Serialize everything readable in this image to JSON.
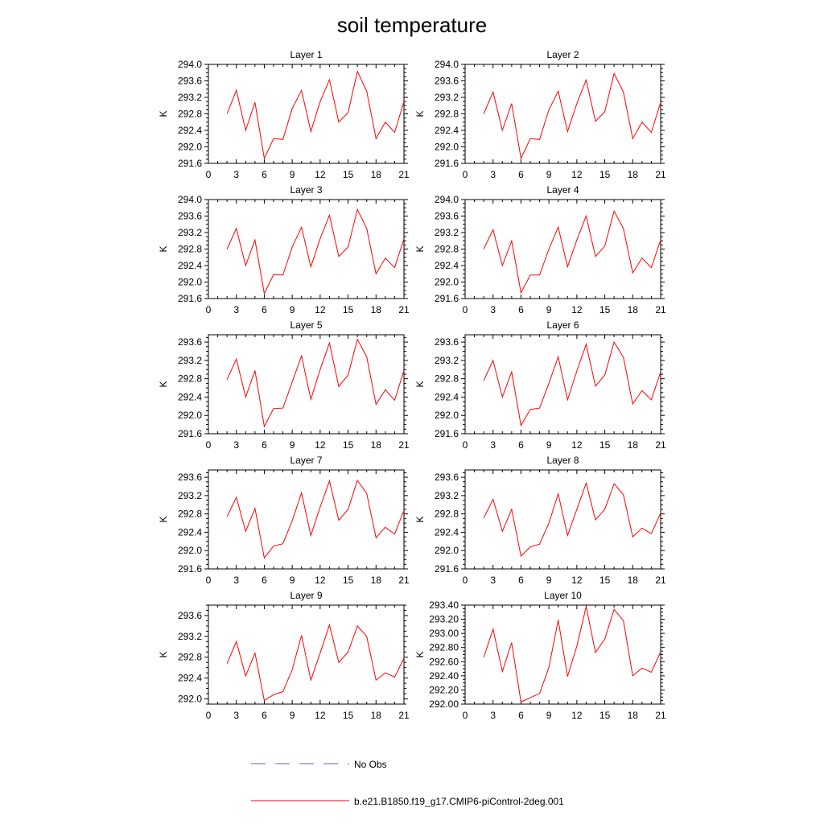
{
  "title": "soil temperature",
  "legend": {
    "placement": "bottom",
    "items": [
      {
        "label": "No Obs",
        "color": "#5a64c8",
        "style": "dashed"
      },
      {
        "label": "b.e21.B1850.f19_g17.CMIP6-piControl-2deg.001",
        "color": "#ff0000",
        "style": "solid"
      }
    ]
  },
  "chart_data": [
    {
      "type": "line",
      "title": "Layer 1",
      "ylabel": "K",
      "xlim": [
        0,
        21
      ],
      "ylim": [
        291.6,
        294.0
      ],
      "xticks": [
        0,
        3,
        6,
        9,
        12,
        15,
        18,
        21
      ],
      "yticks": [
        "291.6",
        "292.0",
        "292.4",
        "292.8",
        "293.2",
        "293.6",
        "294.0"
      ],
      "grid": false,
      "series": [
        {
          "color": "#ff0000",
          "x": [
            2,
            3,
            4,
            5,
            6,
            7,
            8,
            9,
            10,
            11,
            12,
            13,
            14,
            15,
            16,
            17,
            18,
            19,
            20,
            21
          ],
          "y": [
            292.8,
            293.37,
            292.4,
            293.08,
            291.72,
            292.2,
            292.18,
            292.93,
            293.37,
            292.37,
            293.1,
            293.63,
            292.6,
            292.83,
            293.83,
            293.35,
            292.2,
            292.6,
            292.35,
            293.1
          ]
        }
      ]
    },
    {
      "type": "line",
      "title": "Layer 2",
      "ylabel": "K",
      "xlim": [
        0,
        21
      ],
      "ylim": [
        291.6,
        294.0
      ],
      "xticks": [
        0,
        3,
        6,
        9,
        12,
        15,
        18,
        21
      ],
      "yticks": [
        "291.6",
        "292.0",
        "292.4",
        "292.8",
        "293.2",
        "293.6",
        "294.0"
      ],
      "grid": false,
      "series": [
        {
          "color": "#ff0000",
          "x": [
            2,
            3,
            4,
            5,
            6,
            7,
            8,
            9,
            10,
            11,
            12,
            13,
            14,
            15,
            16,
            17,
            18,
            19,
            20,
            21
          ],
          "y": [
            292.8,
            293.33,
            292.4,
            293.05,
            291.72,
            292.2,
            292.18,
            292.9,
            293.35,
            292.37,
            293.05,
            293.62,
            292.62,
            292.85,
            293.78,
            293.33,
            292.2,
            292.6,
            292.35,
            293.08
          ]
        }
      ]
    },
    {
      "type": "line",
      "title": "Layer 3",
      "ylabel": "K",
      "xlim": [
        0,
        21
      ],
      "ylim": [
        291.6,
        294.0
      ],
      "xticks": [
        0,
        3,
        6,
        9,
        12,
        15,
        18,
        21
      ],
      "yticks": [
        "291.6",
        "292.0",
        "292.4",
        "292.8",
        "293.2",
        "293.6",
        "294.0"
      ],
      "grid": false,
      "series": [
        {
          "color": "#ff0000",
          "x": [
            2,
            3,
            4,
            5,
            6,
            7,
            8,
            9,
            10,
            11,
            12,
            13,
            14,
            15,
            16,
            17,
            18,
            19,
            20,
            21
          ],
          "y": [
            292.8,
            293.3,
            292.4,
            293.02,
            291.72,
            292.18,
            292.17,
            292.85,
            293.33,
            292.37,
            293.05,
            293.62,
            292.62,
            292.85,
            293.76,
            293.3,
            292.2,
            292.58,
            292.35,
            293.05
          ]
        }
      ]
    },
    {
      "type": "line",
      "title": "Layer 4",
      "ylabel": "K",
      "xlim": [
        0,
        21
      ],
      "ylim": [
        291.6,
        294.0
      ],
      "xticks": [
        0,
        3,
        6,
        9,
        12,
        15,
        18,
        21
      ],
      "yticks": [
        "291.6",
        "292.0",
        "292.4",
        "292.8",
        "293.2",
        "293.6",
        "294.0"
      ],
      "grid": false,
      "series": [
        {
          "color": "#ff0000",
          "x": [
            2,
            3,
            4,
            5,
            6,
            7,
            8,
            9,
            10,
            11,
            12,
            13,
            14,
            15,
            16,
            17,
            18,
            19,
            20,
            21
          ],
          "y": [
            292.8,
            293.27,
            292.4,
            293.0,
            291.74,
            292.17,
            292.17,
            292.8,
            293.33,
            292.37,
            293.02,
            293.6,
            292.62,
            292.87,
            293.72,
            293.3,
            292.22,
            292.58,
            292.35,
            293.02
          ]
        }
      ]
    },
    {
      "type": "line",
      "title": "Layer 5",
      "ylabel": "K",
      "xlim": [
        0,
        21
      ],
      "ylim": [
        291.6,
        293.76
      ],
      "xticks": [
        0,
        3,
        6,
        9,
        12,
        15,
        18,
        21
      ],
      "yticks": [
        "291.6",
        "292.0",
        "292.4",
        "292.8",
        "293.2",
        "293.6"
      ],
      "grid": false,
      "series": [
        {
          "color": "#ff0000",
          "x": [
            2,
            3,
            4,
            5,
            6,
            7,
            8,
            9,
            10,
            11,
            12,
            13,
            14,
            15,
            16,
            17,
            18,
            19,
            20,
            21
          ],
          "y": [
            292.78,
            293.23,
            292.4,
            292.98,
            291.76,
            292.15,
            292.16,
            292.73,
            293.3,
            292.35,
            293.0,
            293.58,
            292.63,
            292.88,
            293.66,
            293.28,
            292.24,
            292.56,
            292.33,
            292.98
          ]
        }
      ]
    },
    {
      "type": "line",
      "title": "Layer 6",
      "ylabel": "K",
      "xlim": [
        0,
        21
      ],
      "ylim": [
        291.6,
        293.76
      ],
      "xticks": [
        0,
        3,
        6,
        9,
        12,
        15,
        18,
        21
      ],
      "yticks": [
        "291.6",
        "292.0",
        "292.4",
        "292.8",
        "293.2",
        "293.6"
      ],
      "grid": false,
      "series": [
        {
          "color": "#ff0000",
          "x": [
            2,
            3,
            4,
            5,
            6,
            7,
            8,
            9,
            10,
            11,
            12,
            13,
            14,
            15,
            16,
            17,
            18,
            19,
            20,
            21
          ],
          "y": [
            292.76,
            293.2,
            292.4,
            292.95,
            291.78,
            292.13,
            292.16,
            292.7,
            293.28,
            292.34,
            292.97,
            293.55,
            292.64,
            292.88,
            293.6,
            293.27,
            292.25,
            292.54,
            292.34,
            292.95
          ]
        }
      ]
    },
    {
      "type": "line",
      "title": "Layer 7",
      "ylabel": "K",
      "xlim": [
        0,
        21
      ],
      "ylim": [
        291.6,
        293.76
      ],
      "xticks": [
        0,
        3,
        6,
        9,
        12,
        15,
        18,
        21
      ],
      "yticks": [
        "291.6",
        "292.0",
        "292.4",
        "292.8",
        "293.2",
        "293.6"
      ],
      "grid": false,
      "series": [
        {
          "color": "#ff0000",
          "x": [
            2,
            3,
            4,
            5,
            6,
            7,
            8,
            9,
            10,
            11,
            12,
            13,
            14,
            15,
            16,
            17,
            18,
            19,
            20,
            21
          ],
          "y": [
            292.74,
            293.16,
            292.42,
            292.92,
            291.84,
            292.1,
            292.15,
            292.65,
            293.26,
            292.33,
            292.95,
            293.52,
            292.66,
            292.9,
            293.53,
            293.25,
            292.28,
            292.51,
            292.36,
            292.88
          ]
        }
      ]
    },
    {
      "type": "line",
      "title": "Layer 8",
      "ylabel": "K",
      "xlim": [
        0,
        21
      ],
      "ylim": [
        291.6,
        293.76
      ],
      "xticks": [
        0,
        3,
        6,
        9,
        12,
        15,
        18,
        21
      ],
      "yticks": [
        "291.6",
        "292.0",
        "292.4",
        "292.8",
        "293.2",
        "293.6"
      ],
      "grid": false,
      "series": [
        {
          "color": "#ff0000",
          "x": [
            2,
            3,
            4,
            5,
            6,
            7,
            8,
            9,
            10,
            11,
            12,
            13,
            14,
            15,
            16,
            17,
            18,
            19,
            20,
            21
          ],
          "y": [
            292.71,
            293.12,
            292.42,
            292.9,
            291.88,
            292.08,
            292.14,
            292.6,
            293.24,
            292.33,
            292.9,
            293.47,
            292.67,
            292.9,
            293.46,
            293.22,
            292.3,
            292.49,
            292.37,
            292.82
          ]
        }
      ]
    },
    {
      "type": "line",
      "title": "Layer 9",
      "ylabel": "K",
      "xlim": [
        0,
        21
      ],
      "ylim": [
        291.9,
        293.8
      ],
      "xticks": [
        0,
        3,
        6,
        9,
        12,
        15,
        18,
        21
      ],
      "yticks": [
        "292.0",
        "292.4",
        "292.8",
        "293.2",
        "293.6"
      ],
      "grid": false,
      "series": [
        {
          "color": "#ff0000",
          "x": [
            2,
            3,
            4,
            5,
            6,
            7,
            8,
            9,
            10,
            11,
            12,
            13,
            14,
            15,
            16,
            17,
            18,
            19,
            20,
            21
          ],
          "y": [
            292.68,
            293.1,
            292.44,
            292.88,
            291.97,
            292.08,
            292.14,
            292.56,
            293.22,
            292.36,
            292.88,
            293.42,
            292.7,
            292.9,
            293.4,
            293.2,
            292.36,
            292.5,
            292.42,
            292.78
          ]
        }
      ]
    },
    {
      "type": "line",
      "title": "Layer 10",
      "ylabel": "K",
      "xlim": [
        0,
        21
      ],
      "ylim": [
        292.0,
        293.4
      ],
      "xticks": [
        0,
        3,
        6,
        9,
        12,
        15,
        18,
        21
      ],
      "yticks": [
        "292.00",
        "292.20",
        "292.40",
        "292.60",
        "292.80",
        "293.00",
        "293.20",
        "293.40"
      ],
      "grid": false,
      "series": [
        {
          "color": "#ff0000",
          "x": [
            2,
            3,
            4,
            5,
            6,
            7,
            8,
            9,
            10,
            11,
            12,
            13,
            14,
            15,
            16,
            17,
            18,
            19,
            20,
            21
          ],
          "y": [
            292.66,
            293.06,
            292.46,
            292.87,
            292.03,
            292.09,
            292.15,
            292.52,
            293.19,
            292.39,
            292.82,
            293.38,
            292.73,
            292.92,
            293.34,
            293.18,
            292.4,
            292.51,
            292.45,
            292.74
          ]
        }
      ]
    }
  ]
}
